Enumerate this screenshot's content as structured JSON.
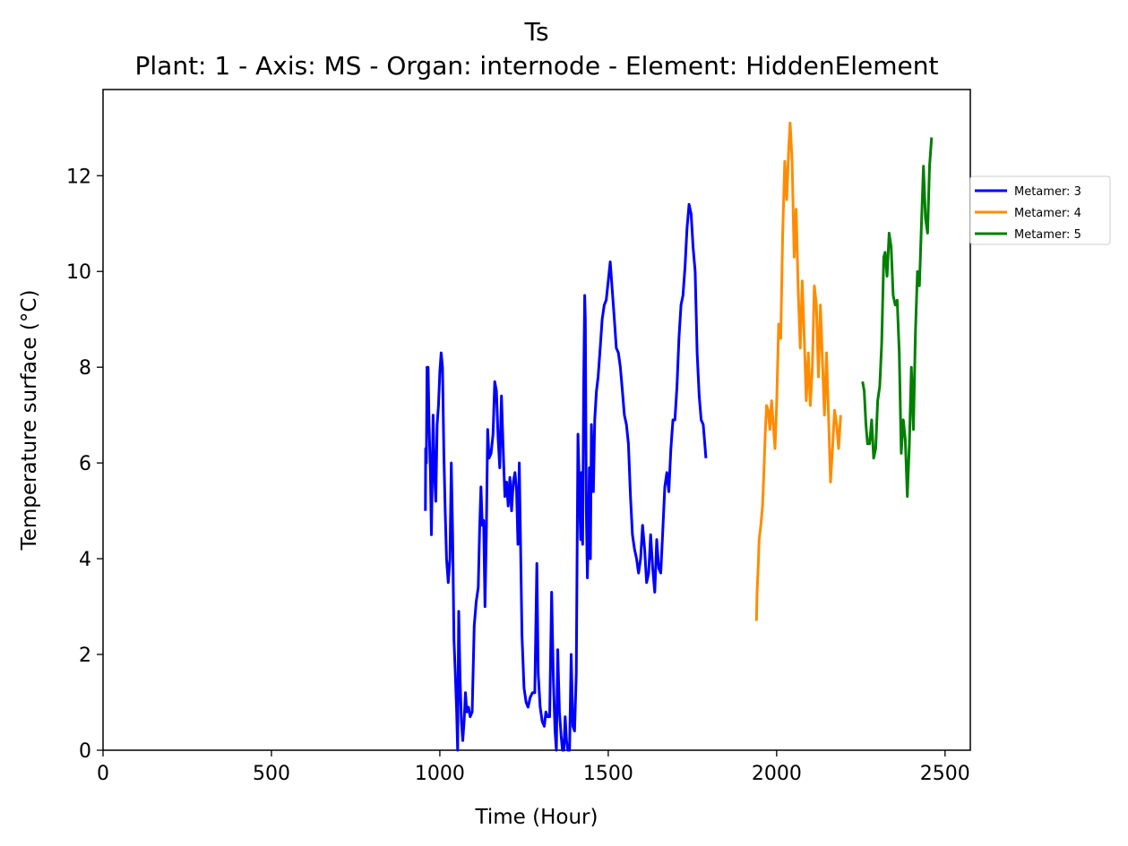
{
  "chart_data": {
    "type": "line",
    "title": "Ts",
    "subtitle": "Plant: 1 - Axis: MS - Organ: internode - Element: HiddenElement",
    "xlabel": "Time (Hour)",
    "ylabel": "Temperature surface (°C)",
    "xlim": [
      0,
      2575
    ],
    "ylim": [
      0,
      13.8
    ],
    "xticks": [
      0,
      500,
      1000,
      1500,
      2000,
      2500
    ],
    "yticks": [
      0,
      2,
      4,
      6,
      8,
      10,
      12
    ],
    "grid": false,
    "legend_position": "outside-right-top",
    "series": [
      {
        "name": "Metamer: 3",
        "color": "#0000ff",
        "points": [
          [
            957,
            5.0
          ],
          [
            958,
            6.3
          ],
          [
            960,
            6.0
          ],
          [
            962,
            8.0
          ],
          [
            965,
            8.0
          ],
          [
            968,
            6.8
          ],
          [
            972,
            5.8
          ],
          [
            975,
            4.5
          ],
          [
            978,
            6.0
          ],
          [
            980,
            7.0
          ],
          [
            984,
            5.8
          ],
          [
            988,
            5.2
          ],
          [
            992,
            6.8
          ],
          [
            996,
            7.2
          ],
          [
            1000,
            7.9
          ],
          [
            1004,
            8.3
          ],
          [
            1008,
            8.0
          ],
          [
            1012,
            6.2
          ],
          [
            1016,
            5.0
          ],
          [
            1020,
            4.0
          ],
          [
            1025,
            3.5
          ],
          [
            1030,
            4.0
          ],
          [
            1034,
            6.0
          ],
          [
            1038,
            4.5
          ],
          [
            1042,
            2.3
          ],
          [
            1046,
            1.6
          ],
          [
            1050,
            0.8
          ],
          [
            1053,
            0.0
          ],
          [
            1056,
            2.9
          ],
          [
            1060,
            1.5
          ],
          [
            1064,
            0.6
          ],
          [
            1068,
            0.2
          ],
          [
            1072,
            0.6
          ],
          [
            1076,
            1.2
          ],
          [
            1080,
            0.8
          ],
          [
            1085,
            0.9
          ],
          [
            1090,
            0.7
          ],
          [
            1096,
            0.8
          ],
          [
            1102,
            2.6
          ],
          [
            1108,
            3.1
          ],
          [
            1114,
            3.4
          ],
          [
            1118,
            4.6
          ],
          [
            1122,
            5.5
          ],
          [
            1126,
            4.7
          ],
          [
            1130,
            4.8
          ],
          [
            1134,
            3.0
          ],
          [
            1138,
            4.5
          ],
          [
            1142,
            6.7
          ],
          [
            1146,
            6.1
          ],
          [
            1152,
            6.2
          ],
          [
            1158,
            6.6
          ],
          [
            1163,
            7.7
          ],
          [
            1168,
            7.5
          ],
          [
            1173,
            6.5
          ],
          [
            1178,
            5.9
          ],
          [
            1183,
            7.4
          ],
          [
            1188,
            6.3
          ],
          [
            1193,
            5.3
          ],
          [
            1198,
            5.6
          ],
          [
            1203,
            5.1
          ],
          [
            1208,
            5.7
          ],
          [
            1213,
            5.0
          ],
          [
            1218,
            5.6
          ],
          [
            1223,
            5.8
          ],
          [
            1228,
            5.4
          ],
          [
            1232,
            4.3
          ],
          [
            1236,
            6.0
          ],
          [
            1240,
            4.2
          ],
          [
            1244,
            2.4
          ],
          [
            1250,
            1.3
          ],
          [
            1256,
            1.0
          ],
          [
            1262,
            0.9
          ],
          [
            1268,
            1.1
          ],
          [
            1275,
            1.2
          ],
          [
            1282,
            1.2
          ],
          [
            1288,
            3.9
          ],
          [
            1292,
            1.6
          ],
          [
            1298,
            0.9
          ],
          [
            1304,
            0.6
          ],
          [
            1310,
            0.5
          ],
          [
            1315,
            0.8
          ],
          [
            1320,
            0.7
          ],
          [
            1326,
            0.7
          ],
          [
            1332,
            3.3
          ],
          [
            1337,
            1.5
          ],
          [
            1342,
            0.4
          ],
          [
            1346,
            0.0
          ],
          [
            1350,
            2.1
          ],
          [
            1355,
            0.8
          ],
          [
            1360,
            0.3
          ],
          [
            1364,
            0.0
          ],
          [
            1368,
            0.0
          ],
          [
            1372,
            0.7
          ],
          [
            1376,
            0.2
          ],
          [
            1380,
            0.0
          ],
          [
            1385,
            0.0
          ],
          [
            1390,
            2.0
          ],
          [
            1395,
            0.5
          ],
          [
            1400,
            0.4
          ],
          [
            1405,
            1.6
          ],
          [
            1410,
            6.6
          ],
          [
            1414,
            5.5
          ],
          [
            1418,
            4.4
          ],
          [
            1421,
            5.8
          ],
          [
            1424,
            4.3
          ],
          [
            1427,
            7.5
          ],
          [
            1430,
            9.5
          ],
          [
            1432,
            9.0
          ],
          [
            1435,
            5.0
          ],
          [
            1438,
            3.6
          ],
          [
            1441,
            4.5
          ],
          [
            1444,
            5.9
          ],
          [
            1447,
            4.0
          ],
          [
            1450,
            6.8
          ],
          [
            1453,
            6.0
          ],
          [
            1456,
            5.4
          ],
          [
            1460,
            6.9
          ],
          [
            1465,
            7.5
          ],
          [
            1470,
            7.8
          ],
          [
            1476,
            8.4
          ],
          [
            1482,
            9.0
          ],
          [
            1488,
            9.3
          ],
          [
            1494,
            9.4
          ],
          [
            1500,
            9.8
          ],
          [
            1506,
            10.2
          ],
          [
            1512,
            9.6
          ],
          [
            1518,
            9.0
          ],
          [
            1524,
            8.4
          ],
          [
            1530,
            8.3
          ],
          [
            1536,
            8.0
          ],
          [
            1542,
            7.5
          ],
          [
            1548,
            7.0
          ],
          [
            1554,
            6.8
          ],
          [
            1560,
            6.4
          ],
          [
            1566,
            5.3
          ],
          [
            1572,
            4.5
          ],
          [
            1578,
            4.2
          ],
          [
            1584,
            4.0
          ],
          [
            1590,
            3.7
          ],
          [
            1596,
            4.0
          ],
          [
            1602,
            4.7
          ],
          [
            1608,
            4.2
          ],
          [
            1614,
            3.5
          ],
          [
            1620,
            3.7
          ],
          [
            1626,
            4.5
          ],
          [
            1632,
            3.8
          ],
          [
            1638,
            3.3
          ],
          [
            1644,
            4.4
          ],
          [
            1650,
            3.8
          ],
          [
            1656,
            3.7
          ],
          [
            1662,
            4.6
          ],
          [
            1668,
            5.5
          ],
          [
            1674,
            5.8
          ],
          [
            1680,
            5.4
          ],
          [
            1686,
            6.3
          ],
          [
            1692,
            6.9
          ],
          [
            1698,
            6.9
          ],
          [
            1704,
            7.6
          ],
          [
            1710,
            8.6
          ],
          [
            1716,
            9.3
          ],
          [
            1722,
            9.5
          ],
          [
            1728,
            10.1
          ],
          [
            1734,
            10.9
          ],
          [
            1740,
            11.4
          ],
          [
            1746,
            11.2
          ],
          [
            1752,
            10.5
          ],
          [
            1758,
            10.0
          ],
          [
            1764,
            8.3
          ],
          [
            1770,
            7.4
          ],
          [
            1776,
            6.9
          ],
          [
            1782,
            6.8
          ],
          [
            1788,
            6.3
          ],
          [
            1790,
            6.1
          ]
        ]
      },
      {
        "name": "Metamer: 4",
        "color": "#ff8c00",
        "points": [
          [
            1940,
            2.7
          ],
          [
            1942,
            3.3
          ],
          [
            1945,
            3.8
          ],
          [
            1948,
            4.4
          ],
          [
            1953,
            4.7
          ],
          [
            1958,
            5.1
          ],
          [
            1962,
            5.8
          ],
          [
            1966,
            6.6
          ],
          [
            1970,
            7.2
          ],
          [
            1975,
            7.1
          ],
          [
            1980,
            6.7
          ],
          [
            1985,
            7.3
          ],
          [
            1990,
            6.8
          ],
          [
            1995,
            6.3
          ],
          [
            2000,
            7.2
          ],
          [
            2006,
            8.9
          ],
          [
            2012,
            8.6
          ],
          [
            2018,
            10.8
          ],
          [
            2024,
            12.3
          ],
          [
            2030,
            11.5
          ],
          [
            2036,
            12.6
          ],
          [
            2040,
            13.1
          ],
          [
            2046,
            12.3
          ],
          [
            2052,
            10.3
          ],
          [
            2058,
            11.3
          ],
          [
            2064,
            9.6
          ],
          [
            2070,
            8.4
          ],
          [
            2076,
            9.8
          ],
          [
            2082,
            8.6
          ],
          [
            2088,
            7.3
          ],
          [
            2094,
            8.3
          ],
          [
            2100,
            7.2
          ],
          [
            2106,
            8.0
          ],
          [
            2112,
            9.7
          ],
          [
            2118,
            9.3
          ],
          [
            2124,
            7.8
          ],
          [
            2130,
            9.3
          ],
          [
            2136,
            8.1
          ],
          [
            2142,
            7.0
          ],
          [
            2148,
            8.3
          ],
          [
            2154,
            7.0
          ],
          [
            2160,
            5.6
          ],
          [
            2166,
            6.3
          ],
          [
            2172,
            7.1
          ],
          [
            2178,
            6.8
          ],
          [
            2184,
            6.3
          ],
          [
            2190,
            7.0
          ]
        ]
      },
      {
        "name": "Metamer: 5",
        "color": "#008000",
        "points": [
          [
            2255,
            7.7
          ],
          [
            2260,
            7.5
          ],
          [
            2265,
            6.8
          ],
          [
            2270,
            6.4
          ],
          [
            2276,
            6.4
          ],
          [
            2282,
            6.9
          ],
          [
            2288,
            6.1
          ],
          [
            2294,
            6.3
          ],
          [
            2300,
            7.3
          ],
          [
            2306,
            7.6
          ],
          [
            2312,
            8.5
          ],
          [
            2318,
            10.3
          ],
          [
            2322,
            10.4
          ],
          [
            2328,
            9.9
          ],
          [
            2334,
            10.8
          ],
          [
            2340,
            10.5
          ],
          [
            2346,
            9.5
          ],
          [
            2352,
            9.3
          ],
          [
            2358,
            9.4
          ],
          [
            2364,
            8.3
          ],
          [
            2370,
            6.2
          ],
          [
            2376,
            6.9
          ],
          [
            2382,
            6.5
          ],
          [
            2388,
            5.3
          ],
          [
            2394,
            6.4
          ],
          [
            2400,
            8.0
          ],
          [
            2406,
            6.7
          ],
          [
            2412,
            8.7
          ],
          [
            2418,
            10.0
          ],
          [
            2424,
            9.7
          ],
          [
            2430,
            11.0
          ],
          [
            2436,
            12.2
          ],
          [
            2442,
            11.1
          ],
          [
            2448,
            10.8
          ],
          [
            2454,
            12.2
          ],
          [
            2460,
            12.8
          ]
        ]
      }
    ]
  }
}
